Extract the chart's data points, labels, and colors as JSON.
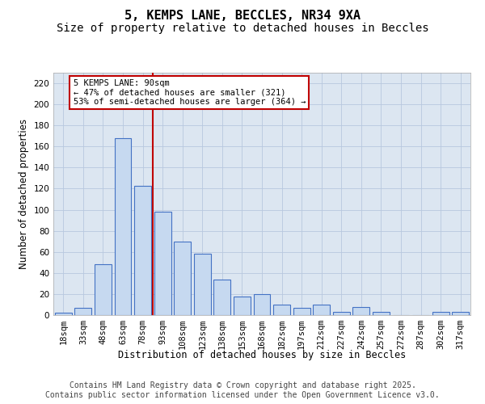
{
  "title1": "5, KEMPS LANE, BECCLES, NR34 9XA",
  "title2": "Size of property relative to detached houses in Beccles",
  "xlabel": "Distribution of detached houses by size in Beccles",
  "ylabel": "Number of detached properties",
  "categories": [
    "18sqm",
    "33sqm",
    "48sqm",
    "63sqm",
    "78sqm",
    "93sqm",
    "108sqm",
    "123sqm",
    "138sqm",
    "153sqm",
    "168sqm",
    "182sqm",
    "197sqm",
    "212sqm",
    "227sqm",
    "242sqm",
    "257sqm",
    "272sqm",
    "287sqm",
    "302sqm",
    "317sqm"
  ],
  "bar_heights": [
    2,
    7,
    48,
    168,
    123,
    98,
    70,
    58,
    34,
    18,
    20,
    10,
    7,
    10,
    3,
    8,
    3,
    0,
    0,
    3,
    3
  ],
  "ylim_max": 230,
  "yticks": [
    0,
    20,
    40,
    60,
    80,
    100,
    120,
    140,
    160,
    180,
    200,
    220
  ],
  "bar_color": "#c6d9f0",
  "bar_edge_color": "#4472c4",
  "grid_color": "#b8c8de",
  "bg_color": "#dce6f1",
  "vline_x": 4.5,
  "vline_color": "#c00000",
  "annotation_text": "5 KEMPS LANE: 90sqm\n← 47% of detached houses are smaller (321)\n53% of semi-detached houses are larger (364) →",
  "annotation_box_facecolor": "#ffffff",
  "annotation_box_edgecolor": "#c00000",
  "footer1": "Contains HM Land Registry data © Crown copyright and database right 2025.",
  "footer2": "Contains public sector information licensed under the Open Government Licence v3.0.",
  "title_fontsize": 11,
  "subtitle_fontsize": 10,
  "axlabel_fontsize": 8.5,
  "tick_fontsize": 7.5,
  "ann_fontsize": 7.5,
  "footer_fontsize": 7
}
